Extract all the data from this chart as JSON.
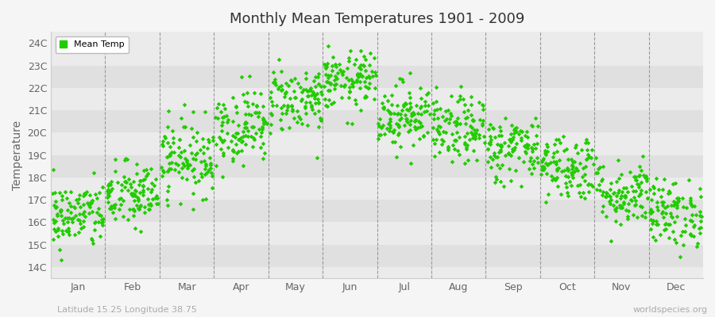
{
  "title": "Monthly Mean Temperatures 1901 - 2009",
  "ylabel": "Temperature",
  "xlabel_bottom_left": "Latitude 15.25 Longitude 38.75",
  "xlabel_bottom_right": "worldspecies.org",
  "legend_label": "Mean Temp",
  "marker_color": "#22cc00",
  "bg_color": "#f5f5f5",
  "plot_bg_color": "#ebebeb",
  "alt_bg_color": "#e0e0e0",
  "yticks": [
    14,
    15,
    16,
    17,
    18,
    19,
    20,
    21,
    22,
    23,
    24
  ],
  "ytick_labels": [
    "14C",
    "15C",
    "16C",
    "17C",
    "18C",
    "19C",
    "20C",
    "21C",
    "22C",
    "23C",
    "24C"
  ],
  "ylim": [
    13.5,
    24.5
  ],
  "months": [
    "Jan",
    "Feb",
    "Mar",
    "Apr",
    "May",
    "Jun",
    "Jul",
    "Aug",
    "Sep",
    "Oct",
    "Nov",
    "Dec"
  ],
  "num_years": 109,
  "seed": 42,
  "monthly_means": [
    16.3,
    17.2,
    18.9,
    20.3,
    21.5,
    22.3,
    20.8,
    20.1,
    19.3,
    18.5,
    17.3,
    16.4
  ],
  "monthly_stds": [
    0.75,
    0.75,
    0.85,
    0.85,
    0.75,
    0.65,
    0.75,
    0.75,
    0.75,
    0.75,
    0.75,
    0.75
  ],
  "dashed_line_color": "#999999",
  "tick_color": "#666666",
  "title_color": "#333333",
  "spine_color": "#cccccc"
}
